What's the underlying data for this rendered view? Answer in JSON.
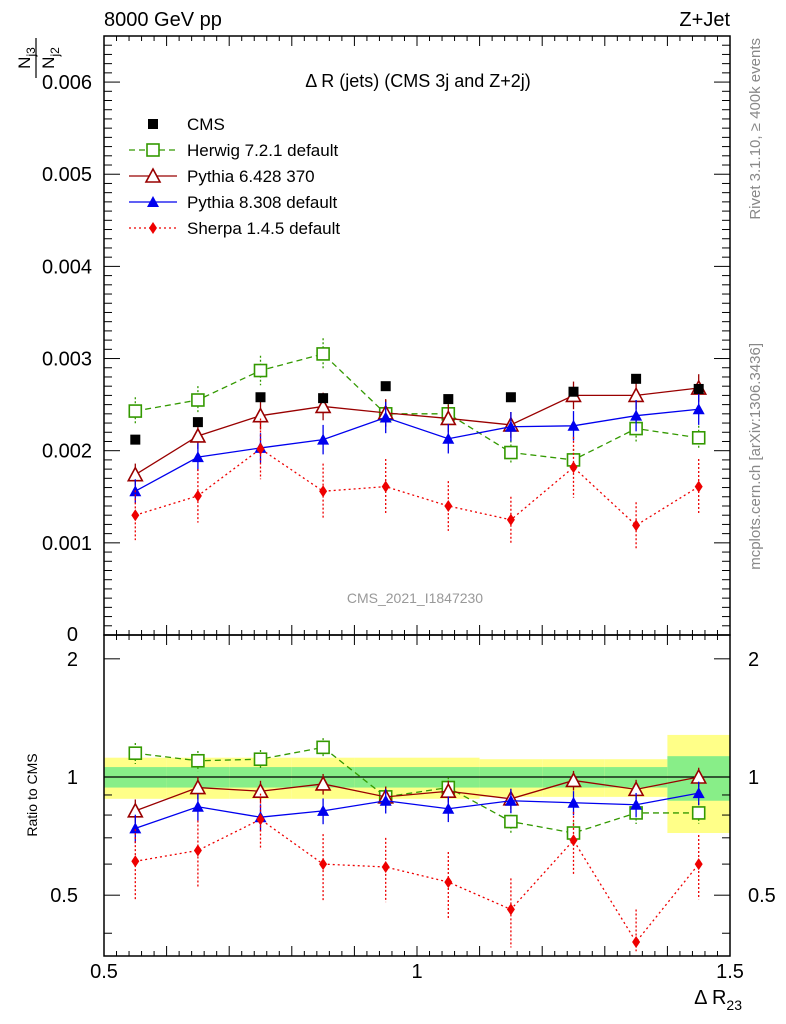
{
  "header": {
    "left": "8000 GeV pp",
    "right": "Z+Jet"
  },
  "side_labels": {
    "rivet": "Rivet 3.1.10, ≥ 400k events",
    "mcplots": "mcplots.cern.ch [arXiv:1306.3436]"
  },
  "chart_data": {
    "type": "scatter",
    "title": "Δ R (jets) (CMS 3j and Z+2j)",
    "watermark": "CMS_2021_I1847230",
    "xlabel": "Δ R23",
    "xlabel_main": "Δ R",
    "xlabel_sub": "23",
    "ylabel_main": "N_j3/N_j2",
    "ylabel_num_main": "N",
    "ylabel_num_sub": "j3",
    "ylabel_den_main": "N",
    "ylabel_den_sub": "j2",
    "ylabel_ratio": "Ratio to CMS",
    "xlim": [
      0.5,
      1.5
    ],
    "ylim": [
      0,
      0.0065
    ],
    "ratio_ylim": [
      0.35,
      2.3
    ],
    "x_ticks": [
      "0.5",
      "1",
      "1.5"
    ],
    "y_ticks": [
      "0",
      "0.001",
      "0.002",
      "0.003",
      "0.004",
      "0.005",
      "0.006"
    ],
    "ratio_ticks": [
      "0.5",
      "1",
      "2"
    ],
    "x": [
      0.55,
      0.65,
      0.75,
      0.85,
      0.95,
      1.05,
      1.15,
      1.25,
      1.35,
      1.45
    ],
    "data": {
      "name": "CMS",
      "values": [
        0.00212,
        0.00231,
        0.00258,
        0.00257,
        0.0027,
        0.00256,
        0.00258,
        0.00264,
        0.00278,
        0.00267
      ],
      "band_inner": [
        0.06,
        0.06,
        0.06,
        0.06,
        0.06,
        0.06,
        0.06,
        0.06,
        0.06,
        0.13
      ],
      "band_outer": [
        0.12,
        0.12,
        0.12,
        0.12,
        0.12,
        0.12,
        0.11,
        0.11,
        0.11,
        0.28
      ]
    },
    "series": [
      {
        "name": "Herwig 7.2.1 default",
        "color": "#339900",
        "marker": "open-square",
        "dash": "6,4",
        "values": [
          0.00243,
          0.00255,
          0.00287,
          0.00305,
          0.0024,
          0.0024,
          0.00198,
          0.0019,
          0.00224,
          0.00214
        ],
        "errors": [
          0.00015,
          0.00015,
          0.00016,
          0.00017,
          0.00015,
          0.00015,
          0.00013,
          0.00012,
          0.00014,
          0.00013
        ],
        "ratio": [
          1.15,
          1.1,
          1.11,
          1.19,
          0.89,
          0.94,
          0.77,
          0.72,
          0.81,
          0.81
        ]
      },
      {
        "name": "Pythia 6.428 370",
        "color": "#990000",
        "marker": "open-triangle",
        "dash": "",
        "values": [
          0.00174,
          0.00216,
          0.00238,
          0.00248,
          0.00241,
          0.00235,
          0.00228,
          0.0026,
          0.0026,
          0.00268
        ],
        "errors": [
          0.00012,
          0.00014,
          0.00015,
          0.00015,
          0.00015,
          0.00015,
          0.00014,
          0.00015,
          0.00015,
          0.00015
        ],
        "ratio": [
          0.82,
          0.94,
          0.92,
          0.96,
          0.89,
          0.92,
          0.88,
          0.98,
          0.93,
          1.0
        ]
      },
      {
        "name": "Pythia 8.308 default",
        "color": "#0000ee",
        "marker": "filled-triangle",
        "dash": "",
        "values": [
          0.00156,
          0.00193,
          0.00203,
          0.00212,
          0.00236,
          0.00213,
          0.00226,
          0.00227,
          0.00238,
          0.00245
        ],
        "errors": [
          0.00013,
          0.00015,
          0.00016,
          0.00016,
          0.00017,
          0.00016,
          0.00016,
          0.00016,
          0.00017,
          0.00017
        ],
        "ratio": [
          0.74,
          0.84,
          0.79,
          0.82,
          0.87,
          0.83,
          0.87,
          0.86,
          0.85,
          0.91
        ]
      },
      {
        "name": "Sherpa 1.4.5 default",
        "color": "#ee0000",
        "marker": "filled-diamond",
        "dash": "2,3",
        "values": [
          0.0013,
          0.00151,
          0.00202,
          0.00156,
          0.00161,
          0.0014,
          0.00125,
          0.00182,
          0.00119,
          0.00161
        ],
        "errors": [
          0.00027,
          0.00029,
          0.00033,
          0.0003,
          0.0003,
          0.00027,
          0.00025,
          0.00033,
          0.00025,
          0.0003
        ],
        "ratio": [
          0.61,
          0.65,
          0.78,
          0.6,
          0.59,
          0.54,
          0.46,
          0.69,
          0.38,
          0.6
        ]
      }
    ]
  }
}
